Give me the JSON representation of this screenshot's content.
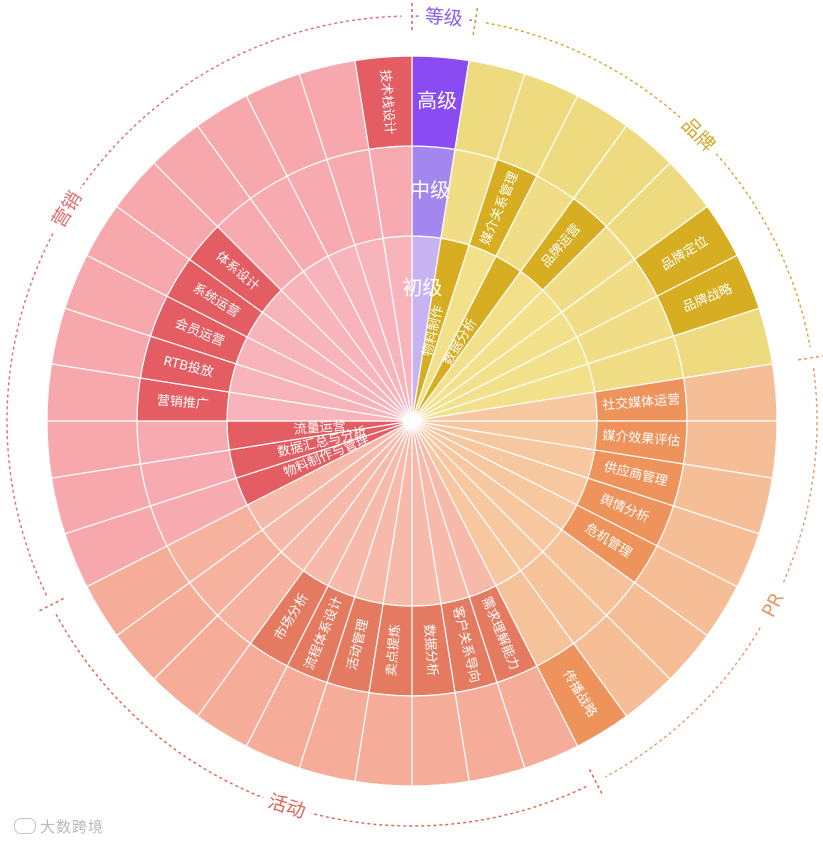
{
  "chart_data": {
    "type": "sunburst",
    "rings_from_center": [
      "初级",
      "中级",
      "高级"
    ],
    "colors": {
      "pinpai": {
        "lvl1": "#f2e08a",
        "lvl2": "#f0dd85",
        "lvl3": "#eedb80",
        "label": "#d7ae22",
        "arc": "#d3a62a"
      },
      "pr": {
        "lvl1": "#f7c7a0",
        "lvl2": "#f6c29a",
        "lvl3": "#f5be96",
        "label": "#ee935c",
        "arc": "#e79a68"
      },
      "huodong": {
        "lvl1": "#f7b9a9",
        "lvl2": "#f6b29f",
        "lvl3": "#f5ad9a",
        "label": "#e47a60",
        "arc": "#e0634f"
      },
      "yingxiao": {
        "lvl1": "#f8b4bb",
        "lvl2": "#f7abb1",
        "lvl3": "#f6a8ad",
        "label": "#e35d62",
        "arc": "#e36b6b"
      },
      "dengji": {
        "lvl1": "#c7b3f2",
        "lvl2": "#a387ee",
        "lvl3": "#8a4cf2",
        "arc": "#8a5ef0"
      }
    },
    "categories": [
      {
        "name": "等级",
        "key": "dengji",
        "start": 0,
        "end": 9,
        "levels": [
          [
            {
              "label": "初级",
              "span": 1
            }
          ],
          [
            {
              "label": "中级",
              "span": 1
            }
          ],
          [
            {
              "label": "高级",
              "span": 1
            }
          ]
        ]
      },
      {
        "name": "品牌",
        "key": "pinpai",
        "start": 9,
        "end": 81,
        "levels": [
          [
            {
              "label": "物料制作",
              "span": 1
            },
            {
              "label": "",
              "span": 1
            },
            {
              "label": "数据分析",
              "span": 1
            },
            {
              "label": "",
              "span": 1
            },
            {
              "label": "",
              "span": 1
            },
            {
              "label": "",
              "span": 1
            },
            {
              "label": "",
              "span": 1
            },
            {
              "label": "",
              "span": 1
            }
          ],
          [
            {
              "label": "",
              "span": 1
            },
            {
              "label": "媒介关系管理",
              "span": 1
            },
            {
              "label": "",
              "span": 1
            },
            {
              "label": "品牌运营",
              "span": 1
            },
            {
              "label": "",
              "span": 1
            },
            {
              "label": "",
              "span": 1
            },
            {
              "label": "",
              "span": 1
            },
            {
              "label": "",
              "span": 1
            }
          ],
          [
            {
              "label": "",
              "span": 1
            },
            {
              "label": "",
              "span": 1
            },
            {
              "label": "",
              "span": 1
            },
            {
              "label": "",
              "span": 1
            },
            {
              "label": "",
              "span": 1
            },
            {
              "label": "品牌定位",
              "span": 1
            },
            {
              "label": "品牌战略",
              "span": 1
            },
            {
              "label": "",
              "span": 1
            }
          ]
        ]
      },
      {
        "name": "PR",
        "key": "pr",
        "start": 81,
        "end": 153,
        "levels": [
          [
            {
              "label": "",
              "span": 1
            },
            {
              "label": "",
              "span": 1
            },
            {
              "label": "",
              "span": 1
            },
            {
              "label": "",
              "span": 1
            },
            {
              "label": "",
              "span": 1
            },
            {
              "label": "",
              "span": 1
            },
            {
              "label": "",
              "span": 1
            },
            {
              "label": "",
              "span": 1
            }
          ],
          [
            {
              "label": "社交媒体运营",
              "span": 1
            },
            {
              "label": "媒介效果评估",
              "span": 1
            },
            {
              "label": "供应商管理",
              "span": 1
            },
            {
              "label": "舆情分析",
              "span": 1
            },
            {
              "label": "危机管理",
              "span": 1
            },
            {
              "label": "",
              "span": 1
            },
            {
              "label": "",
              "span": 1
            },
            {
              "label": "",
              "span": 1
            }
          ],
          [
            {
              "label": "",
              "span": 1
            },
            {
              "label": "",
              "span": 1
            },
            {
              "label": "",
              "span": 1
            },
            {
              "label": "",
              "span": 1
            },
            {
              "label": "",
              "span": 1
            },
            {
              "label": "",
              "span": 1
            },
            {
              "label": "",
              "span": 1
            },
            {
              "label": "传播战略",
              "span": 1
            }
          ]
        ]
      },
      {
        "name": "活动",
        "key": "huodong",
        "start": 153,
        "end": 243,
        "levels": [
          [
            {
              "label": "",
              "span": 1
            },
            {
              "label": "",
              "span": 1
            },
            {
              "label": "",
              "span": 1
            },
            {
              "label": "",
              "span": 1
            },
            {
              "label": "",
              "span": 1
            },
            {
              "label": "",
              "span": 1
            },
            {
              "label": "",
              "span": 1
            },
            {
              "label": "",
              "span": 1
            },
            {
              "label": "",
              "span": 1
            },
            {
              "label": "",
              "span": 1
            }
          ],
          [
            {
              "label": "需求理解能力",
              "span": 1
            },
            {
              "label": "客户关系导向",
              "span": 1
            },
            {
              "label": "数据分析",
              "span": 1
            },
            {
              "label": "卖点提炼",
              "span": 1
            },
            {
              "label": "活动管理",
              "span": 1
            },
            {
              "label": "流程体系设计",
              "span": 1
            },
            {
              "label": "市场分析",
              "span": 1
            },
            {
              "label": "",
              "span": 1
            },
            {
              "label": "",
              "span": 1
            },
            {
              "label": "",
              "span": 1
            }
          ],
          [
            {
              "label": "",
              "span": 1
            },
            {
              "label": "",
              "span": 1
            },
            {
              "label": "",
              "span": 1
            },
            {
              "label": "",
              "span": 1
            },
            {
              "label": "",
              "span": 1
            },
            {
              "label": "",
              "span": 1
            },
            {
              "label": "",
              "span": 1
            },
            {
              "label": "",
              "span": 1
            },
            {
              "label": "",
              "span": 1
            },
            {
              "label": "",
              "span": 1
            }
          ]
        ]
      },
      {
        "name": "营销",
        "key": "yingxiao",
        "start": 243,
        "end": 360,
        "levels": [
          [
            {
              "label": "物料制作与管理",
              "span": 1
            },
            {
              "label": "数据汇总与分析",
              "span": 1
            },
            {
              "label": "流量运营",
              "span": 1
            },
            {
              "label": "",
              "span": 1
            },
            {
              "label": "",
              "span": 1
            },
            {
              "label": "",
              "span": 1
            },
            {
              "label": "",
              "span": 1
            },
            {
              "label": "",
              "span": 1
            },
            {
              "label": "",
              "span": 1
            },
            {
              "label": "",
              "span": 1
            },
            {
              "label": "",
              "span": 1
            },
            {
              "label": "",
              "span": 1
            },
            {
              "label": "",
              "span": 1
            }
          ],
          [
            {
              "label": "",
              "span": 1
            },
            {
              "label": "",
              "span": 1
            },
            {
              "label": "",
              "span": 1
            },
            {
              "label": "营销推广",
              "span": 1
            },
            {
              "label": "RTB投放",
              "span": 1
            },
            {
              "label": "会员运营",
              "span": 1
            },
            {
              "label": "系统运营",
              "span": 1
            },
            {
              "label": "体系设计",
              "span": 1
            },
            {
              "label": "",
              "span": 1
            },
            {
              "label": "",
              "span": 1
            },
            {
              "label": "",
              "span": 1
            },
            {
              "label": "",
              "span": 1
            },
            {
              "label": "",
              "span": 1
            }
          ],
          [
            {
              "label": "",
              "span": 1
            },
            {
              "label": "",
              "span": 1
            },
            {
              "label": "",
              "span": 1
            },
            {
              "label": "",
              "span": 1
            },
            {
              "label": "",
              "span": 1
            },
            {
              "label": "",
              "span": 1
            },
            {
              "label": "",
              "span": 1
            },
            {
              "label": "",
              "span": 1
            },
            {
              "label": "",
              "span": 1
            },
            {
              "label": "",
              "span": 1
            },
            {
              "label": "",
              "span": 1
            },
            {
              "label": "",
              "span": 1
            },
            {
              "label": "技术栈设计",
              "span": 1
            }
          ]
        ]
      }
    ]
  },
  "watermark": {
    "text": "大数跨境"
  }
}
